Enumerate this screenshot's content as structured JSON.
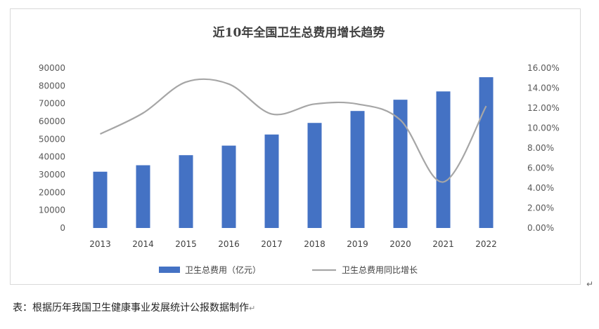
{
  "chart_data": {
    "type": "bar+line",
    "title": "近10年全国卫生总费用增长趋势",
    "categories": [
      "2013",
      "2014",
      "2015",
      "2016",
      "2017",
      "2018",
      "2019",
      "2020",
      "2021",
      "2022"
    ],
    "series": [
      {
        "name": "卫生总费用（亿元）",
        "type": "bar",
        "axis": "left",
        "color": "#4472c4",
        "values": [
          31669,
          35312,
          40975,
          46345,
          52598,
          59122,
          65841,
          72175,
          76845,
          84847
        ]
      },
      {
        "name": "卫生总费用同比增长",
        "type": "line",
        "axis": "right",
        "color": "#a6a6a6",
        "values": [
          0.094,
          0.115,
          0.146,
          0.144,
          0.114,
          0.124,
          0.124,
          0.108,
          0.046,
          0.122
        ]
      }
    ],
    "y_left": {
      "min": 0,
      "max": 90000,
      "step": 10000,
      "tick_labels": [
        "0",
        "10000",
        "20000",
        "30000",
        "40000",
        "50000",
        "60000",
        "70000",
        "80000",
        "90000"
      ]
    },
    "y_right": {
      "min": 0,
      "max": 0.16,
      "step": 0.02,
      "tick_labels": [
        "0.00%",
        "2.00%",
        "4.00%",
        "6.00%",
        "8.00%",
        "10.00%",
        "12.00%",
        "14.00%",
        "16.00%"
      ]
    },
    "grid": false,
    "legend_position": "bottom",
    "legend": [
      {
        "label": "卫生总费用（亿元）",
        "kind": "bar",
        "color": "#4472c4"
      },
      {
        "label": "卫生总费用同比增长",
        "kind": "line",
        "color": "#a6a6a6"
      }
    ]
  },
  "caption": "表：根据历年我国卫生健康事业发展统计公报数据制作",
  "return_mark": "↵"
}
